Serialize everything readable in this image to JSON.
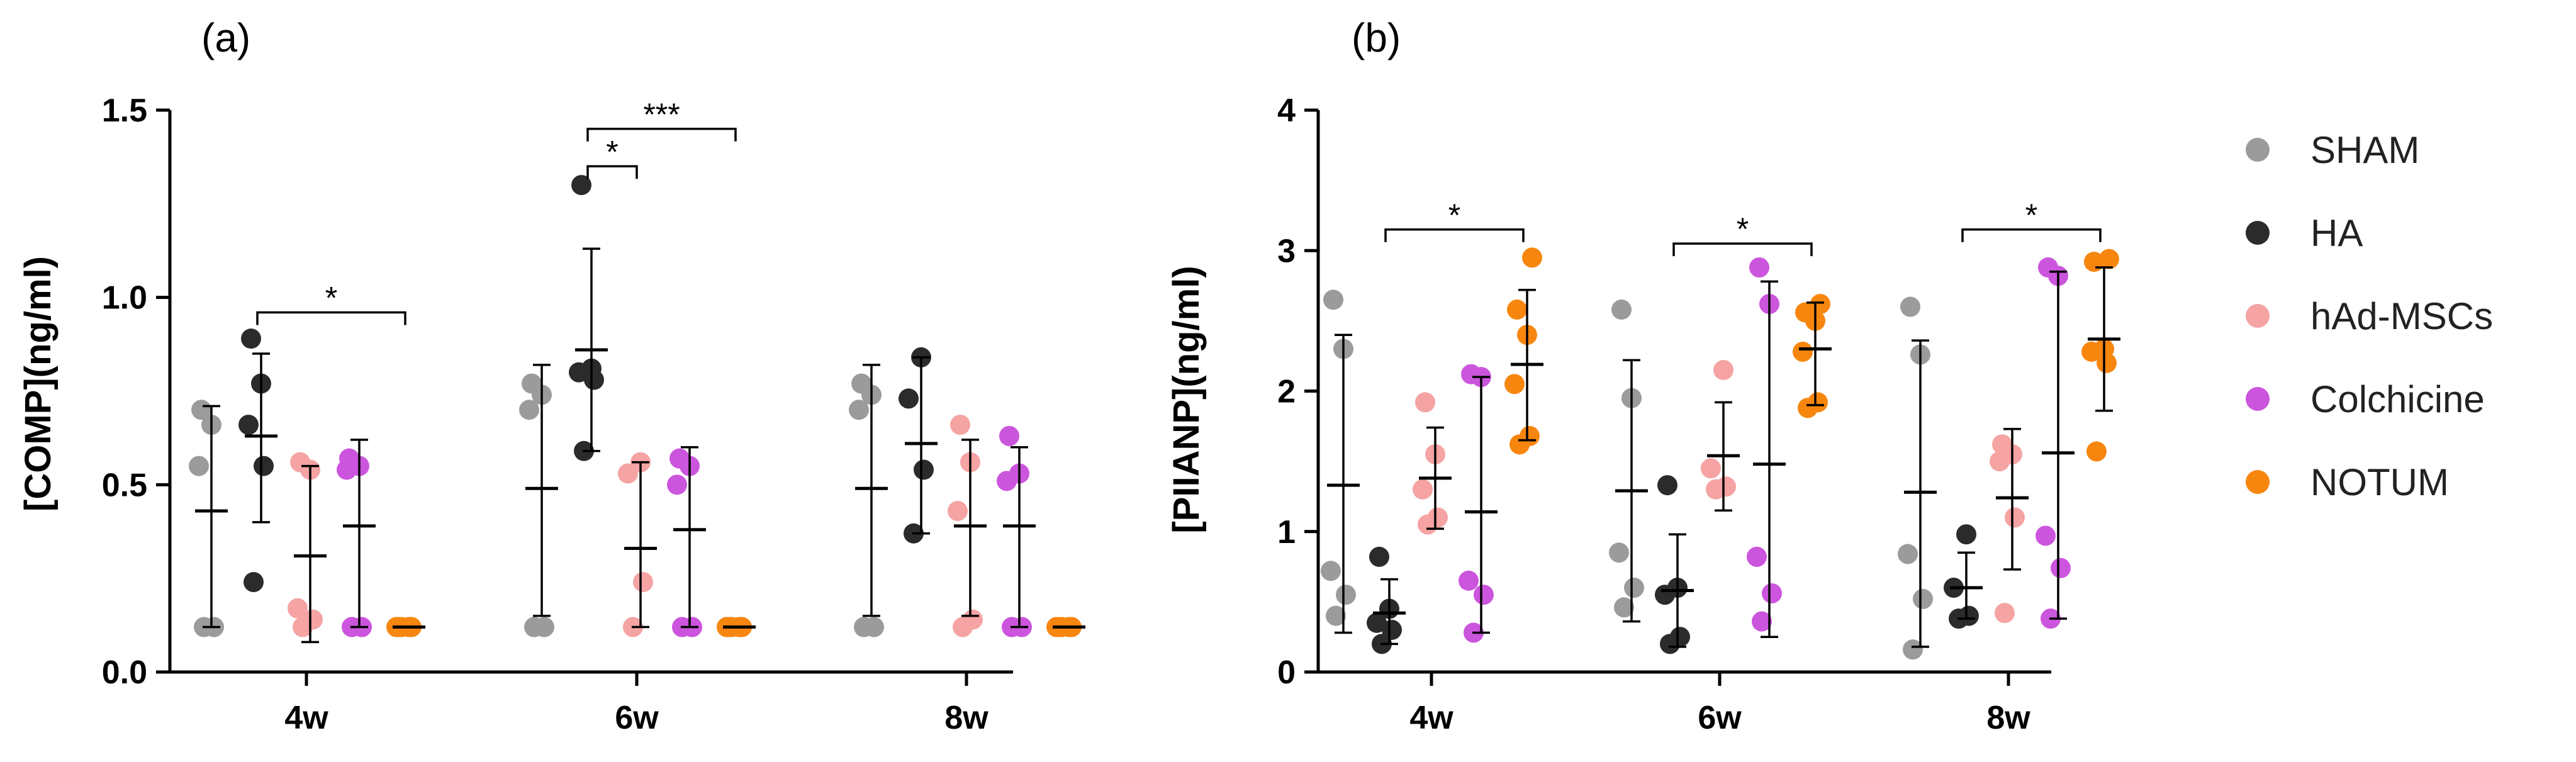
{
  "legend": [
    {
      "name": "SHAM",
      "color": "#9b9b9b"
    },
    {
      "name": "HA",
      "color": "#2b2b2b"
    },
    {
      "name": "hAd-MSCs",
      "color": "#f5a3a3"
    },
    {
      "name": "Colchicine",
      "color": "#cc55dd"
    },
    {
      "name": "NOTUM",
      "color": "#f7860f"
    }
  ],
  "chart_data": [
    {
      "type": "scatter",
      "panel_label": "(a)",
      "title": "",
      "xlabel": "",
      "ylabel": "[COMP](ng/ml)",
      "ylim": [
        0,
        1.5
      ],
      "yticks": [
        "0.0",
        "0.5",
        "1.0",
        "1.5"
      ],
      "yticks_values": [
        0,
        0.5,
        1.0,
        1.5
      ],
      "categories": [
        "4w",
        "6w",
        "8w"
      ],
      "series": [
        {
          "name": "SHAM",
          "groups": [
            {
              "points": [
                0.12,
                0.12,
                0.55,
                0.66,
                0.7
              ],
              "mean": 0.43,
              "sd_low": 0.12,
              "sd_high": 0.71
            },
            {
              "points": [
                0.12,
                0.12,
                0.7,
                0.74,
                0.77
              ],
              "mean": 0.49,
              "sd_low": 0.15,
              "sd_high": 0.82
            },
            {
              "points": [
                0.12,
                0.12,
                0.7,
                0.74,
                0.77
              ],
              "mean": 0.49,
              "sd_low": 0.15,
              "sd_high": 0.82
            }
          ]
        },
        {
          "name": "HA",
          "groups": [
            {
              "points": [
                0.24,
                0.55,
                0.66,
                0.77,
                0.89
              ],
              "mean": 0.63,
              "sd_low": 0.4,
              "sd_high": 0.85
            },
            {
              "points": [
                0.59,
                0.78,
                0.8,
                0.81,
                1.3
              ],
              "mean": 0.86,
              "sd_low": 0.59,
              "sd_high": 1.13
            },
            {
              "points": [
                0.37,
                0.54,
                0.73,
                0.84
              ],
              "mean": 0.61,
              "sd_low": 0.37,
              "sd_high": 0.84
            }
          ]
        },
        {
          "name": "hAd-MSCs",
          "groups": [
            {
              "points": [
                0.12,
                0.14,
                0.17,
                0.54,
                0.56
              ],
              "mean": 0.31,
              "sd_low": 0.08,
              "sd_high": 0.55
            },
            {
              "points": [
                0.12,
                0.24,
                0.53,
                0.56
              ],
              "mean": 0.33,
              "sd_low": 0.12,
              "sd_high": 0.56
            },
            {
              "points": [
                0.12,
                0.14,
                0.43,
                0.56,
                0.66
              ],
              "mean": 0.39,
              "sd_low": 0.15,
              "sd_high": 0.62
            }
          ]
        },
        {
          "name": "Colchicine",
          "groups": [
            {
              "points": [
                0.12,
                0.12,
                0.54,
                0.55,
                0.57
              ],
              "mean": 0.39,
              "sd_low": 0.12,
              "sd_high": 0.62
            },
            {
              "points": [
                0.12,
                0.12,
                0.5,
                0.55,
                0.57
              ],
              "mean": 0.38,
              "sd_low": 0.12,
              "sd_high": 0.6
            },
            {
              "points": [
                0.12,
                0.12,
                0.51,
                0.53,
                0.63
              ],
              "mean": 0.39,
              "sd_low": 0.12,
              "sd_high": 0.6
            }
          ]
        },
        {
          "name": "NOTUM",
          "groups": [
            {
              "points": [
                0.12,
                0.12,
                0.12,
                0.12,
                0.12
              ],
              "mean": 0.12,
              "sd_low": 0.12,
              "sd_high": 0.12
            },
            {
              "points": [
                0.12,
                0.12,
                0.12,
                0.12,
                0.12
              ],
              "mean": 0.12,
              "sd_low": 0.12,
              "sd_high": 0.12
            },
            {
              "points": [
                0.12,
                0.12,
                0.12,
                0.12,
                0.12
              ],
              "mean": 0.12,
              "sd_low": 0.12,
              "sd_high": 0.12
            }
          ]
        }
      ],
      "significance": [
        {
          "category": 0,
          "from_series": 1,
          "to_series": 4,
          "y": 0.96,
          "label": "*"
        },
        {
          "category": 1,
          "from_series": 1,
          "to_series": 2,
          "y": 1.35,
          "label": "*"
        },
        {
          "category": 1,
          "from_series": 1,
          "to_series": 4,
          "y": 1.45,
          "label": "***"
        }
      ]
    },
    {
      "type": "scatter",
      "panel_label": "(b)",
      "title": "",
      "xlabel": "",
      "ylabel": "[PIIANP](ng/ml)",
      "ylim": [
        0,
        4
      ],
      "yticks": [
        "0",
        "1",
        "2",
        "3",
        "4"
      ],
      "yticks_values": [
        0,
        1,
        2,
        3,
        4
      ],
      "categories": [
        "4w",
        "6w",
        "8w"
      ],
      "series": [
        {
          "name": "SHAM",
          "groups": [
            {
              "points": [
                0.4,
                0.55,
                0.72,
                2.3,
                2.65
              ],
              "mean": 1.33,
              "sd_low": 0.28,
              "sd_high": 2.4
            },
            {
              "points": [
                0.46,
                0.6,
                0.85,
                1.95,
                2.58
              ],
              "mean": 1.29,
              "sd_low": 0.36,
              "sd_high": 2.22
            },
            {
              "points": [
                0.16,
                0.52,
                0.84,
                2.26,
                2.6
              ],
              "mean": 1.28,
              "sd_low": 0.18,
              "sd_high": 2.36
            }
          ]
        },
        {
          "name": "HA",
          "groups": [
            {
              "points": [
                0.2,
                0.3,
                0.35,
                0.45,
                0.82
              ],
              "mean": 0.42,
              "sd_low": 0.2,
              "sd_high": 0.66
            },
            {
              "points": [
                0.2,
                0.25,
                0.55,
                0.6,
                1.33
              ],
              "mean": 0.58,
              "sd_low": 0.18,
              "sd_high": 0.98
            },
            {
              "points": [
                0.38,
                0.4,
                0.6,
                0.98
              ],
              "mean": 0.6,
              "sd_low": 0.38,
              "sd_high": 0.85
            }
          ]
        },
        {
          "name": "hAd-MSCs",
          "groups": [
            {
              "points": [
                1.05,
                1.1,
                1.3,
                1.55,
                1.92
              ],
              "mean": 1.38,
              "sd_low": 1.02,
              "sd_high": 1.74
            },
            {
              "points": [
                1.3,
                1.32,
                1.45,
                2.15
              ],
              "mean": 1.54,
              "sd_low": 1.15,
              "sd_high": 1.92
            },
            {
              "points": [
                0.42,
                1.1,
                1.5,
                1.55,
                1.62
              ],
              "mean": 1.24,
              "sd_low": 0.73,
              "sd_high": 1.73
            }
          ]
        },
        {
          "name": "Colchicine",
          "groups": [
            {
              "points": [
                0.28,
                0.55,
                0.65,
                2.1,
                2.12
              ],
              "mean": 1.14,
              "sd_low": 0.28,
              "sd_high": 2.1
            },
            {
              "points": [
                0.36,
                0.56,
                0.82,
                2.62,
                2.88
              ],
              "mean": 1.48,
              "sd_low": 0.25,
              "sd_high": 2.78
            },
            {
              "points": [
                0.38,
                0.74,
                0.97,
                2.82,
                2.88
              ],
              "mean": 1.56,
              "sd_low": 0.38,
              "sd_high": 2.85
            }
          ]
        },
        {
          "name": "NOTUM",
          "groups": [
            {
              "points": [
                1.62,
                1.68,
                2.05,
                2.4,
                2.58,
                2.95
              ],
              "mean": 2.19,
              "sd_low": 1.65,
              "sd_high": 2.72
            },
            {
              "points": [
                1.88,
                1.92,
                2.28,
                2.5,
                2.56,
                2.62
              ],
              "mean": 2.3,
              "sd_low": 1.9,
              "sd_high": 2.63
            },
            {
              "points": [
                1.57,
                2.2,
                2.28,
                2.3,
                2.92,
                2.94
              ],
              "mean": 2.37,
              "sd_low": 1.86,
              "sd_high": 2.88
            }
          ]
        }
      ],
      "significance": [
        {
          "category": 0,
          "from_series": 1,
          "to_series": 4,
          "y": 3.15,
          "label": "*"
        },
        {
          "category": 1,
          "from_series": 1,
          "to_series": 4,
          "y": 3.05,
          "label": "*"
        },
        {
          "category": 2,
          "from_series": 1,
          "to_series": 4,
          "y": 3.15,
          "label": "*"
        }
      ]
    }
  ]
}
